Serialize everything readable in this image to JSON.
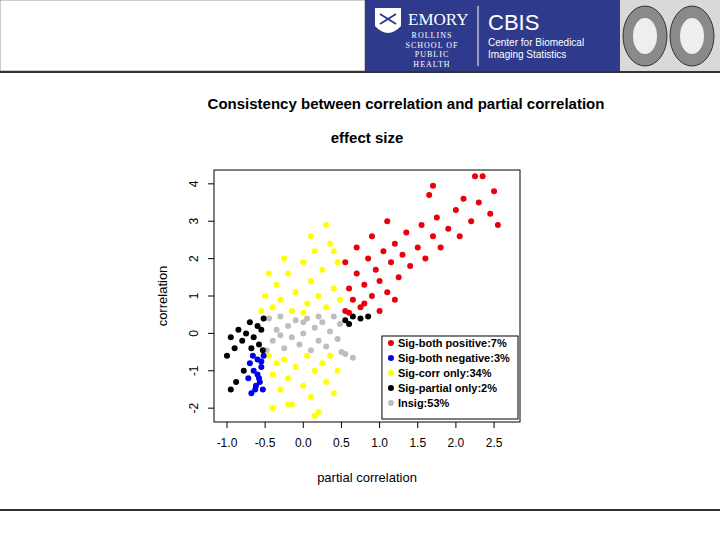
{
  "header": {
    "org": "EMORY",
    "school": [
      "ROLLINS",
      "SCHOOL OF",
      "PUBLIC",
      "HEALTH"
    ],
    "center": "CBIS",
    "center_full": [
      "Center for Biomedical",
      "Imaging Statistics"
    ]
  },
  "slide": {
    "title": "Consistency between correlation and partial correlation"
  },
  "chart_data": {
    "type": "scatter",
    "title": "effect size",
    "x_label": "partial correlation",
    "y_label": "correlation",
    "xlim": [
      -1.17,
      2.84
    ],
    "ylim": [
      -2.37,
      4.37
    ],
    "xticks": [
      {
        "value": -1,
        "label": "-1.0"
      },
      -0.5,
      {
        "value": 0,
        "label": "0.0"
      },
      0.5,
      {
        "value": 1,
        "label": "1.0"
      },
      1.5,
      {
        "value": 2,
        "label": "2.0"
      },
      2.5
    ],
    "yticks": [
      -2,
      -1,
      0,
      1,
      2,
      3,
      4
    ],
    "legend": "bottom-right",
    "marker": "circle",
    "series": [
      {
        "name": "Sig-both positive:7%",
        "color": "#e8000b",
        "x": [
          0.55,
          0.6,
          0.65,
          0.7,
          0.75,
          0.8,
          0.85,
          0.9,
          0.95,
          1.0,
          1.05,
          1.1,
          1.15,
          1.2,
          1.25,
          1.3,
          1.35,
          1.4,
          1.5,
          1.55,
          1.6,
          1.7,
          1.75,
          1.8,
          1.9,
          2.0,
          2.05,
          2.1,
          2.2,
          2.3,
          2.35,
          2.45,
          2.5,
          2.55,
          0.6,
          0.7,
          0.9,
          1.1,
          1.65,
          1.2,
          0.55,
          2.25,
          1.7,
          0.8,
          1.0
        ],
        "values": [
          0.6,
          1.2,
          0.9,
          1.6,
          0.7,
          1.3,
          2.0,
          1.0,
          1.7,
          1.4,
          2.2,
          1.1,
          1.9,
          2.4,
          1.5,
          2.1,
          2.7,
          1.8,
          2.3,
          2.9,
          2.0,
          2.6,
          3.1,
          2.3,
          2.8,
          3.3,
          2.6,
          3.6,
          3.0,
          3.5,
          4.2,
          3.2,
          3.8,
          2.9,
          0.55,
          2.3,
          2.6,
          3.0,
          3.7,
          0.9,
          1.9,
          4.2,
          3.95,
          0.8,
          0.6
        ]
      },
      {
        "name": "Sig-both negative:3%",
        "color": "#0000ee",
        "x": [
          -0.52,
          -0.55,
          -0.58,
          -0.6,
          -0.62,
          -0.65,
          -0.68,
          -0.7,
          -0.53,
          -0.57,
          -0.6,
          -0.66,
          -0.72,
          -0.55,
          -0.63
        ],
        "values": [
          -0.6,
          -0.9,
          -1.2,
          -0.7,
          -1.4,
          -1.0,
          -1.6,
          -0.8,
          -1.5,
          -1.3,
          -1.1,
          -0.6,
          -1.2,
          -0.75,
          -1.5
        ]
      },
      {
        "name": "Sig-corr only:34%",
        "color": "#ffff00",
        "x": [
          -0.55,
          -0.5,
          -0.4,
          -0.35,
          -0.3,
          -0.2,
          -0.15,
          -0.1,
          0.0,
          0.05,
          0.1,
          0.15,
          0.2,
          0.25,
          0.3,
          0.35,
          0.4,
          0.45,
          0.48,
          -0.25,
          0.1,
          0.3,
          -0.45,
          0.0,
          0.4,
          -0.45,
          -0.4,
          -0.35,
          -0.3,
          -0.25,
          -0.2,
          -0.15,
          -0.1,
          0.0,
          0.05,
          0.1,
          0.15,
          0.2,
          0.25,
          0.3,
          0.35,
          0.45,
          -0.2,
          -0.4,
          0.4,
          0.15
        ],
        "values": [
          0.6,
          1.0,
          0.7,
          1.3,
          0.9,
          1.6,
          0.6,
          1.1,
          1.9,
          0.8,
          1.4,
          2.2,
          1.0,
          1.7,
          0.7,
          2.4,
          1.2,
          1.9,
          0.9,
          2.0,
          2.6,
          2.9,
          1.6,
          0.55,
          2.2,
          -0.6,
          -1.1,
          -0.8,
          -1.5,
          -0.7,
          -1.2,
          -1.9,
          -0.9,
          -1.4,
          -0.6,
          -1.7,
          -1.0,
          -2.1,
          -0.8,
          -1.3,
          -0.6,
          -1.0,
          -1.9,
          -2.0,
          -1.6,
          -2.2
        ]
      },
      {
        "name": "Sig-partial only:2%",
        "color": "#000000",
        "x": [
          -0.52,
          -0.55,
          -0.58,
          -0.6,
          -0.65,
          -0.7,
          -0.75,
          -0.8,
          -0.85,
          -0.9,
          -0.95,
          -1.0,
          -0.78,
          -0.88,
          -0.95,
          -0.68,
          -0.53,
          0.55,
          0.65,
          0.75,
          0.85,
          0.6
        ],
        "values": [
          0.4,
          0.1,
          -0.3,
          0.2,
          -0.1,
          0.3,
          0.0,
          -0.2,
          0.1,
          -0.4,
          -0.1,
          -0.6,
          -1.0,
          -1.3,
          -1.5,
          -0.4,
          -0.45,
          0.35,
          0.45,
          0.4,
          0.45,
          0.25
        ]
      },
      {
        "name": "Insig:53%",
        "color": "#bebebe",
        "x": [
          -0.45,
          -0.4,
          -0.35,
          -0.3,
          -0.25,
          -0.2,
          -0.15,
          -0.1,
          -0.05,
          0.0,
          0.05,
          0.1,
          0.15,
          0.2,
          0.25,
          0.3,
          0.35,
          0.4,
          0.45,
          0.48,
          -0.48,
          -0.3,
          0.0,
          0.2,
          0.5,
          0.55,
          0.65
        ],
        "values": [
          0.4,
          -0.2,
          0.1,
          0.45,
          -0.4,
          0.2,
          -0.1,
          0.35,
          -0.3,
          0.0,
          0.4,
          -0.45,
          0.15,
          -0.2,
          0.3,
          -0.35,
          0.05,
          0.45,
          -0.15,
          0.25,
          -0.45,
          -0.05,
          0.3,
          0.45,
          -0.5,
          -0.55,
          -0.65
        ]
      }
    ]
  }
}
